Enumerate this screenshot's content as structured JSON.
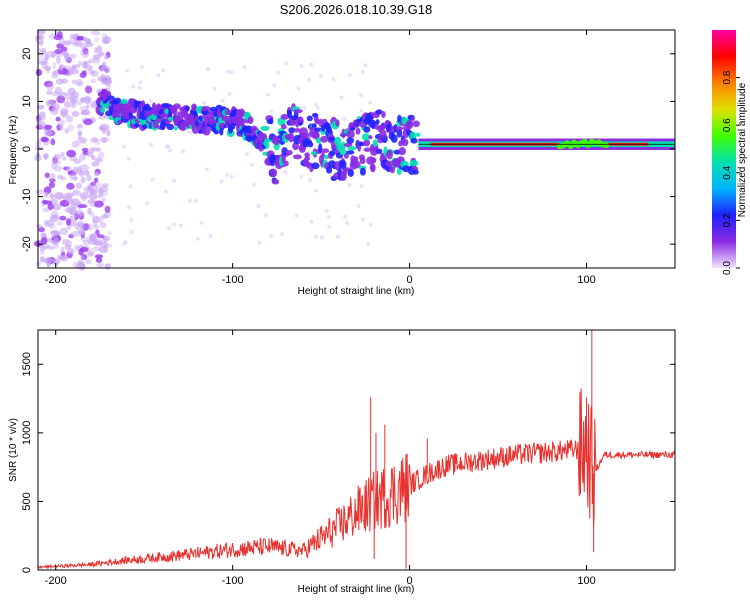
{
  "title": "S206.2026.018.10.39.G18",
  "chart_data": [
    {
      "type": "heatmap",
      "name": "spectrogram",
      "xlabel": "Height of straight line (km)",
      "ylabel": "Frequency (Hz)",
      "xlim": [
        -210,
        150
      ],
      "ylim": [
        -25,
        25
      ],
      "xticks": [
        -200,
        -100,
        0,
        100
      ],
      "yticks": [
        -20,
        -10,
        0,
        10,
        20
      ],
      "colorbar": {
        "label": "Normalized spectral amplitude",
        "range": [
          0.0,
          1.0
        ],
        "ticks": [
          0.0,
          0.2,
          0.4,
          0.6,
          0.8
        ],
        "tick_labels": [
          "0.0",
          "0.2",
          "0.4",
          "0.6",
          "0.8"
        ],
        "colors": [
          "#f2e6ff",
          "#8a2be2",
          "#2020ff",
          "#00b4ff",
          "#00e0b0",
          "#40ff00",
          "#e0e000",
          "#ff8000",
          "#ff0000",
          "#ff00a0"
        ]
      },
      "ridge": {
        "x": [
          -175,
          -165,
          -150,
          -130,
          -110,
          -95,
          -85,
          -75,
          -65,
          -55,
          -45,
          -35,
          -25,
          -15,
          -5,
          0,
          5,
          10,
          150
        ],
        "freq": [
          10,
          8,
          7,
          6.5,
          6,
          5.5,
          3,
          -1,
          4,
          2,
          0,
          -1,
          1,
          2,
          1,
          1.5,
          1,
          1,
          1
        ]
      }
    },
    {
      "type": "line",
      "name": "snr",
      "xlabel": "Height of straight line (km)",
      "ylabel": "SNR (10 * v/v)",
      "xlim": [
        -210,
        150
      ],
      "ylim": [
        0,
        1750
      ],
      "xticks": [
        -200,
        -100,
        0,
        100
      ],
      "yticks": [
        0,
        500,
        1000,
        1500
      ],
      "color": "#e8322f",
      "trend": {
        "x": [
          -210,
          -180,
          -160,
          -120,
          -100,
          -80,
          -60,
          -40,
          -30,
          -20,
          -10,
          0,
          10,
          20,
          40,
          60,
          80,
          95,
          100,
          104,
          110,
          130,
          150
        ],
        "y": [
          20,
          40,
          70,
          120,
          150,
          170,
          140,
          320,
          420,
          500,
          560,
          620,
          700,
          760,
          800,
          840,
          860,
          880,
          900,
          700,
          840,
          840,
          840
        ]
      },
      "spikes": [
        {
          "x": -22,
          "y": 1260
        },
        {
          "x": -19,
          "y": 1000
        },
        {
          "x": -14,
          "y": 1060
        },
        {
          "x": -20,
          "y": 80
        },
        {
          "x": -2,
          "y": 10
        },
        {
          "x": 10,
          "y": 960
        },
        {
          "x": 100,
          "y": 1260
        },
        {
          "x": 103,
          "y": 1760
        },
        {
          "x": 104,
          "y": 130
        }
      ]
    }
  ]
}
